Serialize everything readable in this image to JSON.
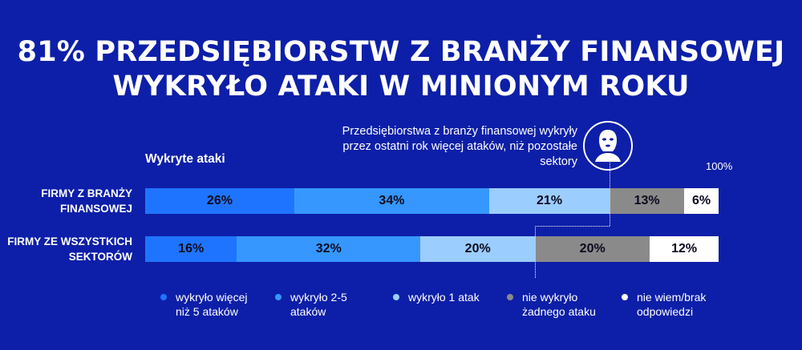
{
  "title": {
    "line1": "81% PRZEDSIĘBIORSTW Z BRANŻY FINANSOWEJ",
    "line2": "WYKRYŁO ATAKI W MINIONYM ROKU"
  },
  "annotation": {
    "text": "Przedsiębiorstwa z branży finansowej wykryły przez ostatni rok więcej ataków, niż pozostałe sektory",
    "icon": "masked-person-icon"
  },
  "colors": {
    "background": "#0d1fa8",
    "series": [
      "#1f74ff",
      "#3597ff",
      "#9ccdff",
      "#8a8a8a",
      "#ffffff"
    ]
  },
  "chart_data": {
    "type": "bar",
    "orientation": "horizontal",
    "stacked": true,
    "title": "Wykryte ataki",
    "xmax_label": "100%",
    "xlim": [
      0,
      100
    ],
    "categories": [
      "FIRMY Z BRANŻY FINANSOWEJ",
      "FIRMY ZE WSZYSTKICH SEKTORÓW"
    ],
    "series": [
      {
        "name": "wykryło więcej niż 5 ataków",
        "values": [
          26,
          16
        ]
      },
      {
        "name": "wykryło 2-5 ataków",
        "values": [
          34,
          32
        ]
      },
      {
        "name": "wykryło 1 atak",
        "values": [
          21,
          20
        ]
      },
      {
        "name": "nie wykryło żadnego ataku",
        "values": [
          13,
          20
        ]
      },
      {
        "name": "nie wiem/brak odpowiedzi",
        "values": [
          6,
          12
        ]
      }
    ],
    "legend": "bottom"
  }
}
